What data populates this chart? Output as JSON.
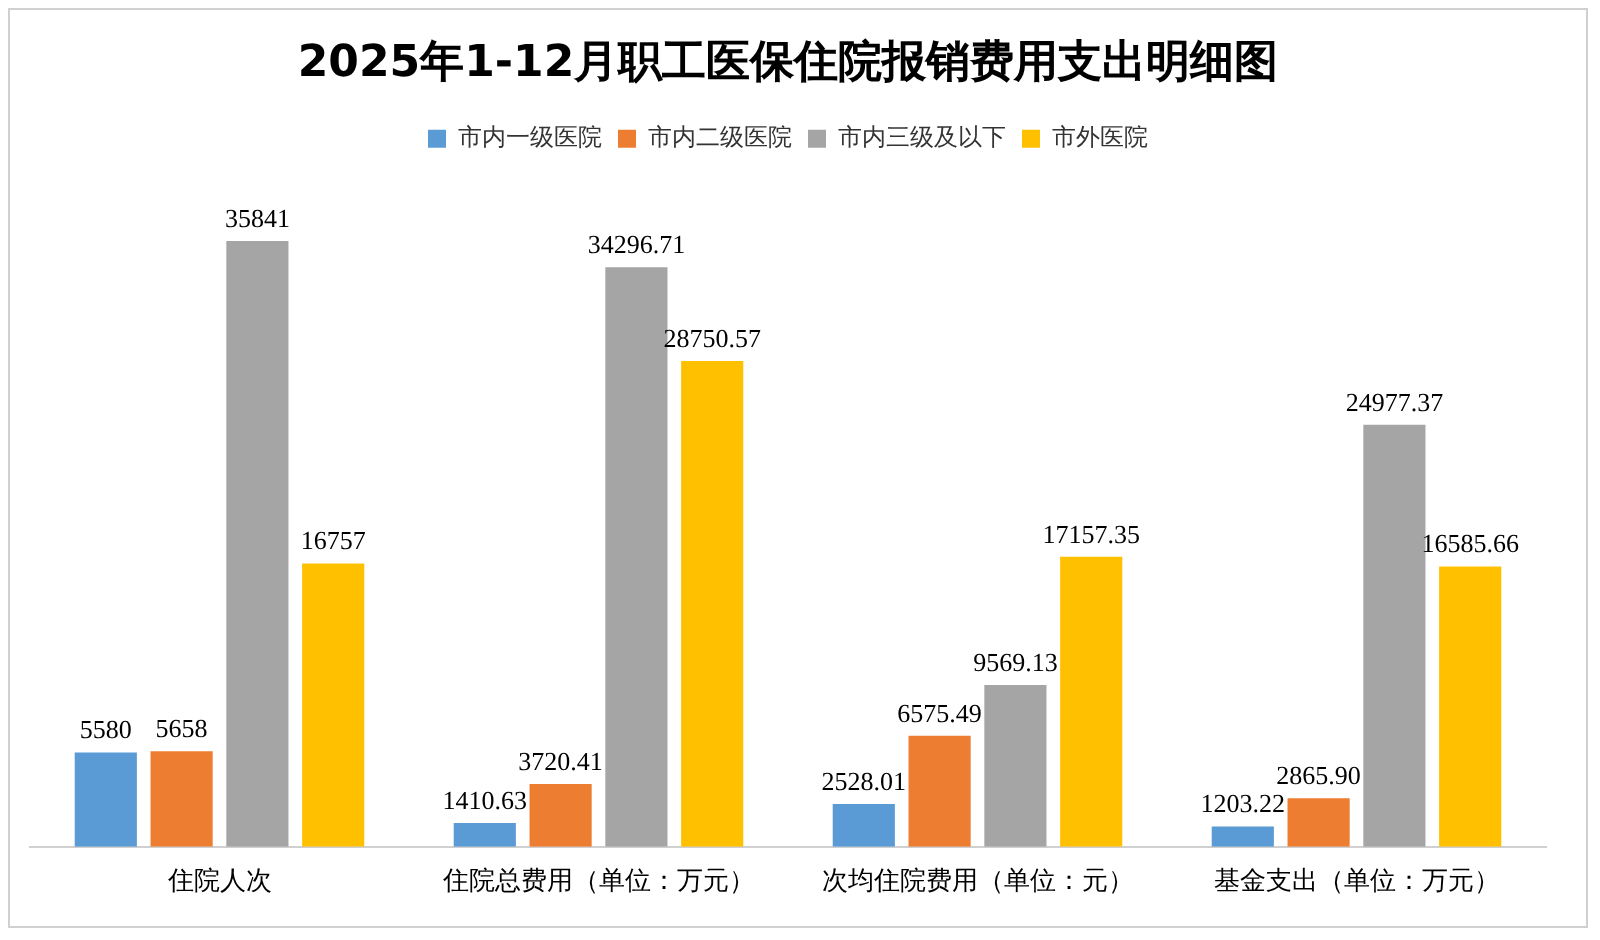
{
  "chart_data": {
    "type": "bar",
    "title": "2025年1-12月职工医保住院报销费用支出明细图",
    "categories": [
      "住院人次",
      "住院总费用（单位：万元）",
      "次均住院费用（单位：元）",
      "基金支出（单位：万元）"
    ],
    "series": [
      {
        "name": "市内一级医院",
        "color": "#5b9bd5",
        "values": [
          5580,
          1410.63,
          2528.01,
          1203.22
        ],
        "value_labels": [
          "5580",
          "1410.63",
          "2528.01",
          "1203.22"
        ]
      },
      {
        "name": "市内二级医院",
        "color": "#ed7d31",
        "values": [
          5658,
          3720.41,
          6575.49,
          2865.9
        ],
        "value_labels": [
          "5658",
          "3720.41",
          "6575.49",
          "2865.90"
        ]
      },
      {
        "name": "市内三级及以下",
        "color": "#a5a5a5",
        "values": [
          35841,
          34296.71,
          9569.13,
          24977.37
        ],
        "value_labels": [
          "35841",
          "34296.71",
          "9569.13",
          "24977.37"
        ]
      },
      {
        "name": "市外医院",
        "color": "#ffc000",
        "values": [
          16757,
          28750.57,
          17157.35,
          16585.66
        ],
        "value_labels": [
          "16757",
          "28750.57",
          "17157.35",
          "16585.66"
        ]
      }
    ],
    "legend": "top",
    "grid": false,
    "tick_labels": "x"
  }
}
